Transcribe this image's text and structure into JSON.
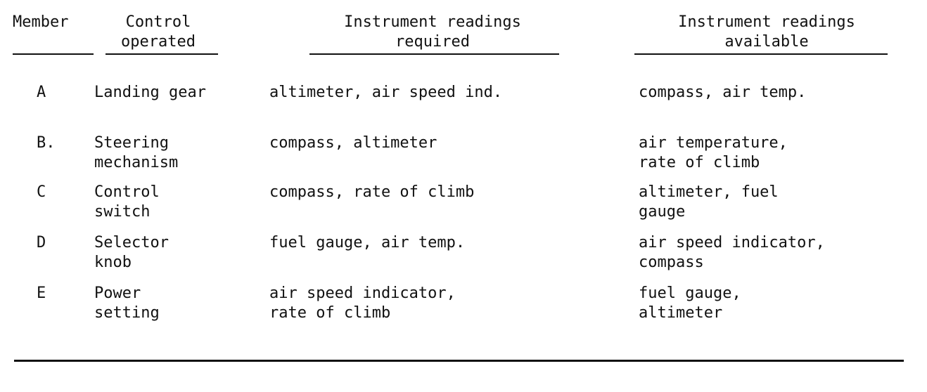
{
  "headers": {
    "member": "Member",
    "control": [
      "Control",
      "operated"
    ],
    "required": [
      "Instrument readings",
      "required"
    ],
    "available": [
      "Instrument readings",
      "available"
    ]
  },
  "rows": [
    {
      "member": "A",
      "control": [
        "Landing gear"
      ],
      "required": [
        "altimeter, air speed ind."
      ],
      "available": [
        "compass, air temp."
      ]
    },
    {
      "member": "B.",
      "control": [
        "Steering",
        "mechanism"
      ],
      "required": [
        "compass, altimeter"
      ],
      "available": [
        "air temperature,",
        "rate of climb"
      ]
    },
    {
      "member": "C",
      "control": [
        "Control",
        "switch"
      ],
      "required": [
        "compass, rate of climb"
      ],
      "available": [
        "altimeter, fuel",
        "gauge"
      ]
    },
    {
      "member": "D",
      "control": [
        "Selector",
        "knob"
      ],
      "required": [
        "fuel gauge, air temp."
      ],
      "available": [
        "air speed indicator,",
        "compass"
      ]
    },
    {
      "member": "E",
      "control": [
        "Power",
        "setting"
      ],
      "required": [
        "air speed indicator,",
        "rate of climb"
      ],
      "available": [
        "fuel gauge,",
        "altimeter"
      ]
    }
  ]
}
